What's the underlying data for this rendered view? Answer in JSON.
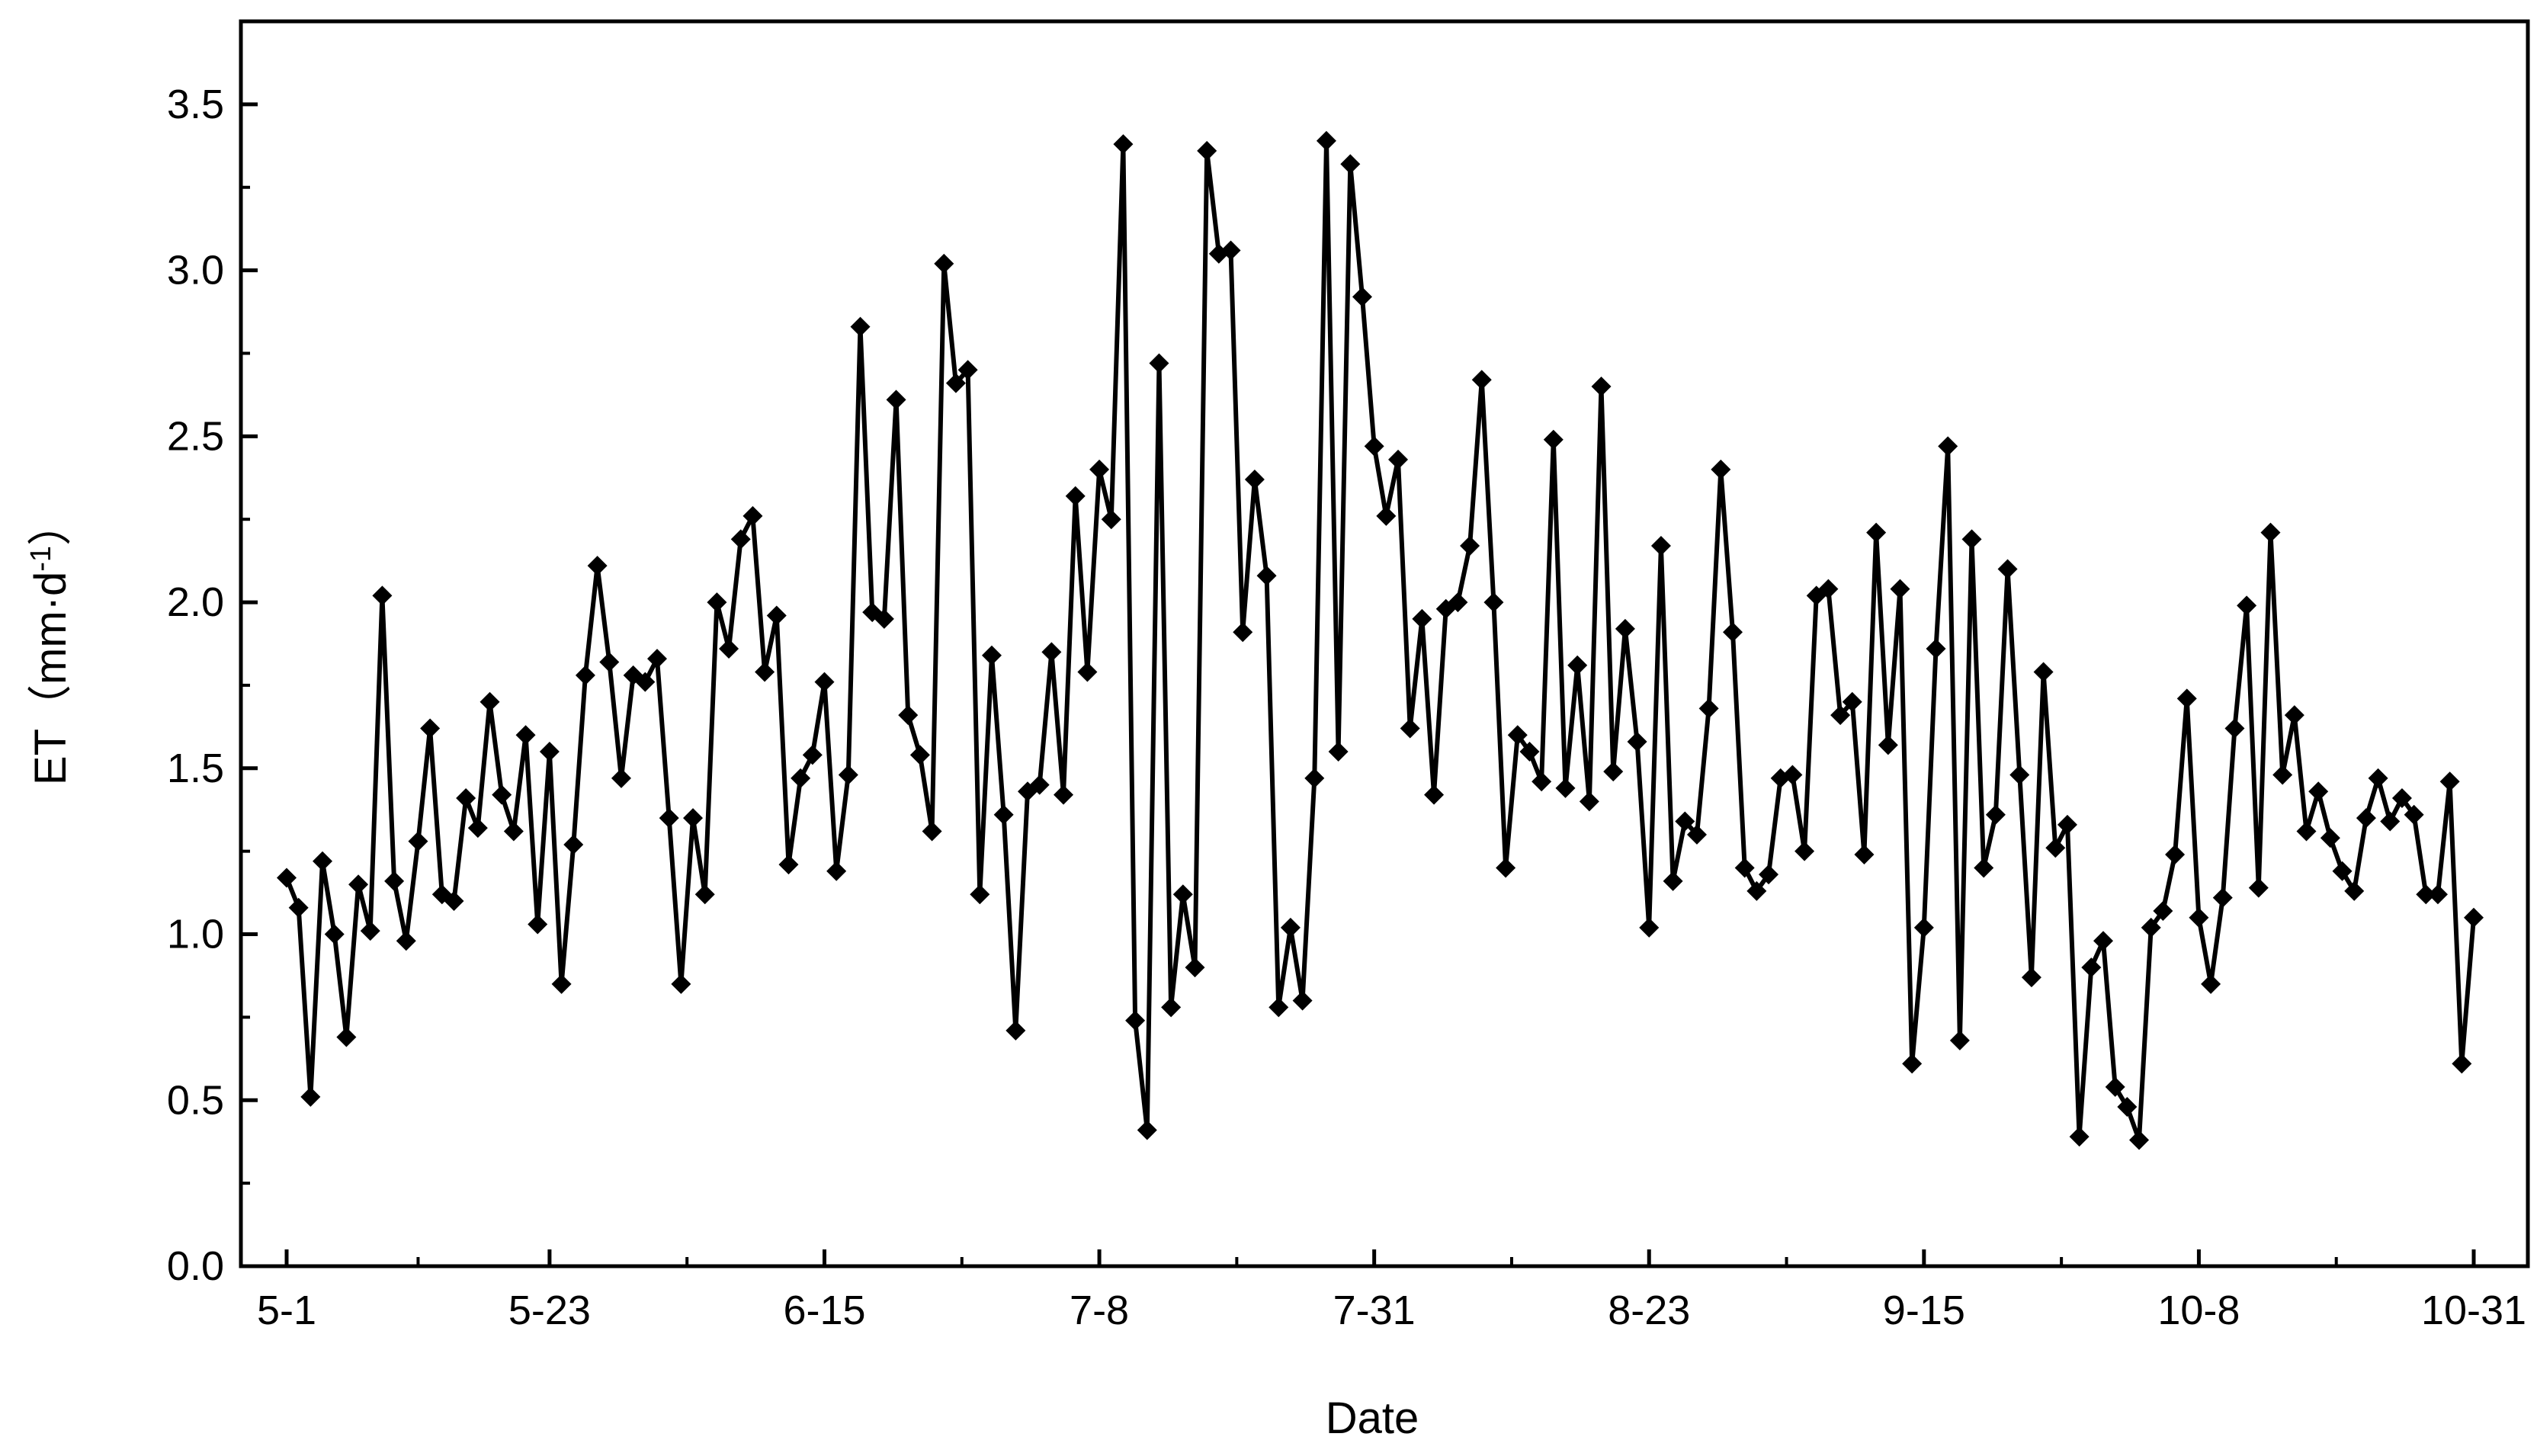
{
  "chart_data": {
    "type": "line",
    "xlabel": "Date",
    "ylabel": {
      "prefix": "ET（mm·d",
      "superscript": "-1",
      "suffix": "）"
    },
    "ylim": [
      0,
      3.75
    ],
    "y_ticks": [
      "0.0",
      "0.5",
      "1.0",
      "1.5",
      "2.0",
      "2.5",
      "3.0",
      "3.5"
    ],
    "x_ticks": [
      "5-1",
      "5-23",
      "6-15",
      "7-8",
      "7-31",
      "8-23",
      "9-15",
      "10-8",
      "10-31"
    ],
    "x_start": "5-1",
    "x_end": "10-31",
    "marker": "diamond",
    "color": "#000000",
    "grid": false,
    "legend": "none",
    "series": [
      {
        "values": [
          1.17,
          1.08,
          0.51,
          1.22,
          1.0,
          0.69,
          1.15,
          1.01,
          2.02,
          1.16,
          0.98,
          1.28,
          1.62,
          1.12,
          1.1,
          1.41,
          1.32,
          1.7,
          1.42,
          1.31,
          1.6,
          1.03,
          1.55,
          0.85,
          1.27,
          1.78,
          2.11,
          1.82,
          1.47,
          1.78,
          1.76,
          1.83,
          1.35,
          0.85,
          1.35,
          1.12,
          2.0,
          1.86,
          2.19,
          2.26,
          1.79,
          1.96,
          1.21,
          1.47,
          1.54,
          1.76,
          1.19,
          1.48,
          2.83,
          1.97,
          1.95,
          2.61,
          1.66,
          1.54,
          1.31,
          3.02,
          2.66,
          2.7,
          1.12,
          1.84,
          1.36,
          0.71,
          1.43,
          1.45,
          1.85,
          1.42,
          2.32,
          1.79,
          2.4,
          2.25,
          3.38,
          0.74,
          0.41,
          2.72,
          0.78,
          1.12,
          0.9,
          3.36,
          3.05,
          3.06,
          1.91,
          2.37,
          2.08,
          0.78,
          1.02,
          0.8,
          1.47,
          3.39,
          1.55,
          3.32,
          2.92,
          2.47,
          2.26,
          2.43,
          1.62,
          1.95,
          1.42,
          1.98,
          2.0,
          2.17,
          2.67,
          2.0,
          1.2,
          1.6,
          1.55,
          1.46,
          2.49,
          1.44,
          1.81,
          1.4,
          2.65,
          1.49,
          1.92,
          1.58,
          1.02,
          2.17,
          1.16,
          1.34,
          1.3,
          1.68,
          2.4,
          1.91,
          1.2,
          1.13,
          1.18,
          1.47,
          1.48,
          1.25,
          2.02,
          2.04,
          1.66,
          1.7,
          1.24,
          2.21,
          1.57,
          2.04,
          0.61,
          1.02,
          1.86,
          2.47,
          0.68,
          2.19,
          1.2,
          1.36,
          2.1,
          1.48,
          0.87,
          1.79,
          1.26,
          1.33,
          0.39,
          0.9,
          0.98,
          0.54,
          0.48,
          0.38,
          1.02,
          1.07,
          1.24,
          1.71,
          1.05,
          0.85,
          1.11,
          1.62,
          1.99,
          1.14,
          2.21,
          1.48,
          1.66,
          1.31,
          1.43,
          1.29,
          1.19,
          1.13,
          1.35,
          1.47,
          1.34,
          1.41,
          1.36,
          1.12,
          1.12,
          1.46,
          0.61,
          1.05
        ]
      }
    ]
  }
}
